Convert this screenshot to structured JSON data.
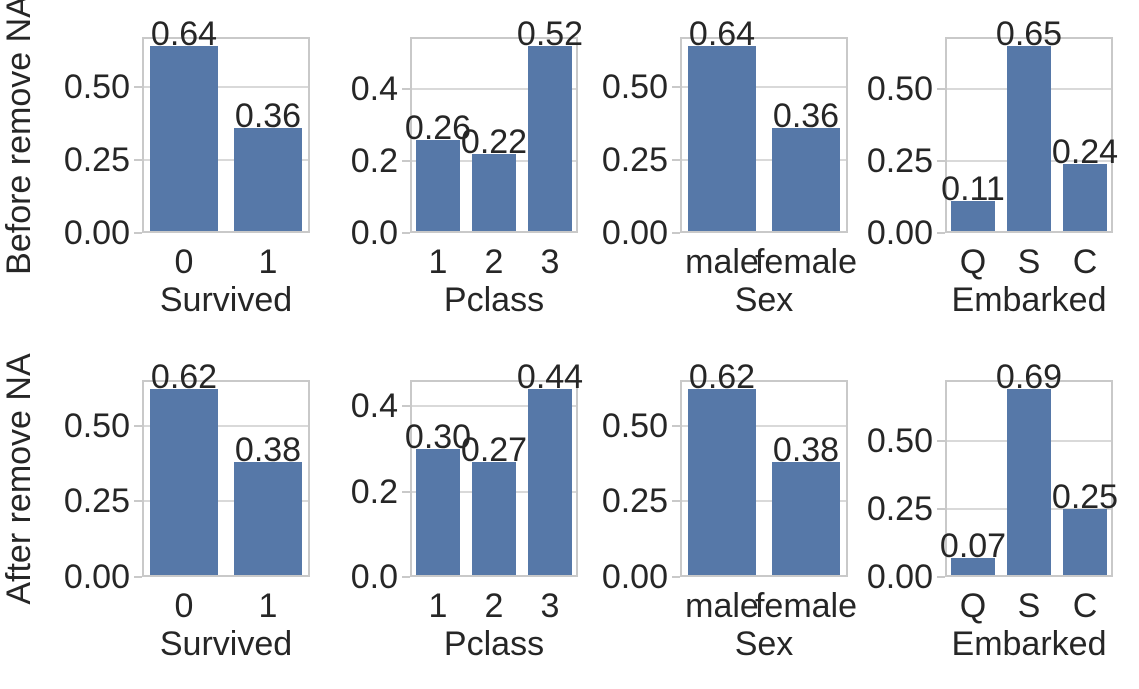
{
  "figure": {
    "background": "#ffffff",
    "text_color": "#262626",
    "bar_color": "#5678a8",
    "grid_color": "#d9d9d9",
    "frame_color": "#c9c9c9"
  },
  "chart_data": {
    "type": "bar",
    "title": "",
    "grid": "horizontal",
    "legend": "none",
    "rows": [
      {
        "row_label": "Before remove NA",
        "panels": [
          {
            "xlabel": "Survived",
            "categories": [
              "0",
              "1"
            ],
            "values": [
              0.64,
              0.36
            ],
            "bar_labels": [
              "0.64",
              "0.36"
            ],
            "yticks": [
              0,
              0.25,
              0.5
            ],
            "ytick_labels": [
              "0.00",
              "0.25",
              "0.50"
            ],
            "ylim": [
              0,
              0.672
            ]
          },
          {
            "xlabel": "Pclass",
            "categories": [
              "1",
              "2",
              "3"
            ],
            "values": [
              0.26,
              0.22,
              0.52
            ],
            "bar_labels": [
              "0.26",
              "0.22",
              "0.52"
            ],
            "yticks": [
              0,
              0.2,
              0.4
            ],
            "ytick_labels": [
              "0.0",
              "0.2",
              "0.4"
            ],
            "ylim": [
              0,
              0.546
            ]
          },
          {
            "xlabel": "Sex",
            "categories": [
              "male",
              "female"
            ],
            "values": [
              0.64,
              0.36
            ],
            "bar_labels": [
              "0.64",
              "0.36"
            ],
            "yticks": [
              0,
              0.25,
              0.5
            ],
            "ytick_labels": [
              "0.00",
              "0.25",
              "0.50"
            ],
            "ylim": [
              0,
              0.672
            ]
          },
          {
            "xlabel": "Embarked",
            "categories": [
              "Q",
              "S",
              "C"
            ],
            "values": [
              0.11,
              0.65,
              0.24
            ],
            "bar_labels": [
              "0.11",
              "0.65",
              "0.24"
            ],
            "yticks": [
              0,
              0.25,
              0.5
            ],
            "ytick_labels": [
              "0.00",
              "0.25",
              "0.50"
            ],
            "ylim": [
              0,
              0.6825
            ]
          }
        ]
      },
      {
        "row_label": "After remove NA",
        "panels": [
          {
            "xlabel": "Survived",
            "categories": [
              "0",
              "1"
            ],
            "values": [
              0.62,
              0.38
            ],
            "bar_labels": [
              "0.62",
              "0.38"
            ],
            "yticks": [
              0,
              0.25,
              0.5
            ],
            "ytick_labels": [
              "0.00",
              "0.25",
              "0.50"
            ],
            "ylim": [
              0,
              0.651
            ]
          },
          {
            "xlabel": "Pclass",
            "categories": [
              "1",
              "2",
              "3"
            ],
            "values": [
              0.3,
              0.27,
              0.44
            ],
            "bar_labels": [
              "0.30",
              "0.27",
              "0.44"
            ],
            "yticks": [
              0,
              0.2,
              0.4
            ],
            "ytick_labels": [
              "0.0",
              "0.2",
              "0.4"
            ],
            "ylim": [
              0,
              0.462
            ]
          },
          {
            "xlabel": "Sex",
            "categories": [
              "male",
              "female"
            ],
            "values": [
              0.62,
              0.38
            ],
            "bar_labels": [
              "0.62",
              "0.38"
            ],
            "yticks": [
              0,
              0.25,
              0.5
            ],
            "ytick_labels": [
              "0.00",
              "0.25",
              "0.50"
            ],
            "ylim": [
              0,
              0.651
            ]
          },
          {
            "xlabel": "Embarked",
            "categories": [
              "Q",
              "S",
              "C"
            ],
            "values": [
              0.07,
              0.69,
              0.25
            ],
            "bar_labels": [
              "0.07",
              "0.69",
              "0.25"
            ],
            "yticks": [
              0,
              0.25,
              0.5
            ],
            "ytick_labels": [
              "0.00",
              "0.25",
              "0.50"
            ],
            "ylim": [
              0,
              0.7245
            ]
          }
        ]
      }
    ]
  }
}
